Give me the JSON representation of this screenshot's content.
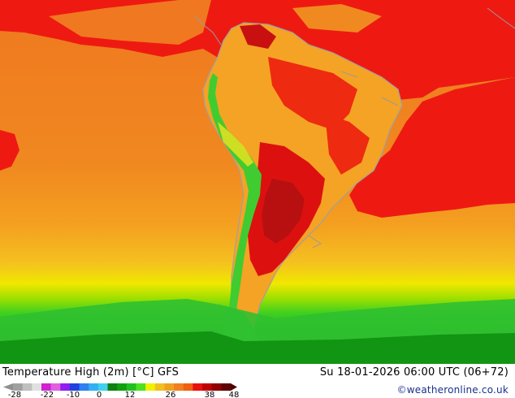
{
  "footer": {
    "title": "Temperature High (2m) [°C] GFS",
    "datetime": "Su 18-01-2026 06:00 UTC (06+72)",
    "credit": "©weatheronline.co.uk"
  },
  "legend": {
    "tick_labels": [
      "-28",
      "-22",
      "-10",
      "0",
      "12",
      "26",
      "38",
      "48"
    ],
    "colors": [
      "#a0a0a0",
      "#c0c0c0",
      "#e0e0e0",
      "#d020d0",
      "#e060e0",
      "#9020f0",
      "#2040e0",
      "#3080f0",
      "#30b0f0",
      "#40d0f0",
      "#108010",
      "#10a010",
      "#20c020",
      "#50e020",
      "#f0f000",
      "#f0c020",
      "#f0a020",
      "#f08020",
      "#f06010",
      "#e81010",
      "#c00000",
      "#900000",
      "#600000"
    ]
  },
  "map": {
    "colors": {
      "ocean_warm": "#f08a20",
      "ocean_hot": "#ee1a12",
      "land_mid": "#f5a324",
      "land_hot": "#dd1010",
      "land_very_hot": "#a81010",
      "andes_green": "#40cc30",
      "south_yellow": "#f0e800",
      "south_green": "#30c830",
      "coast": "#a0a0a0"
    }
  }
}
